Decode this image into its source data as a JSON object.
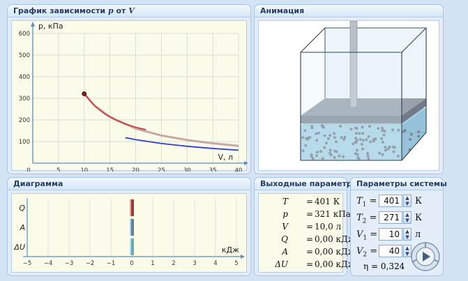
{
  "graph_panel": {
    "title_prefix": "График зависимости",
    "title_p": "p",
    "title_mid": "от",
    "title_v": "V"
  },
  "chart_data": {
    "type": "line",
    "xlabel": "V, л",
    "ylabel": "p, кПа",
    "xlim": [
      0,
      40
    ],
    "ylim": [
      0,
      600
    ],
    "x_ticks": [
      "0",
      "5",
      "10",
      "15",
      "20",
      "25",
      "30",
      "35",
      "40"
    ],
    "y_ticks": [
      "100",
      "200",
      "300",
      "400",
      "500",
      "600"
    ],
    "grid": true,
    "current_point": {
      "x": 10,
      "y": 321
    },
    "series": [
      {
        "color": "#c9a6a6",
        "x": [
          10,
          12,
          15,
          20,
          25,
          30,
          35,
          40
        ],
        "y": [
          321,
          267,
          214,
          160,
          128,
          107,
          92,
          80
        ]
      },
      {
        "color": "#c94040",
        "x": [
          10,
          12,
          14,
          16,
          18,
          20,
          22
        ],
        "y": [
          321,
          265,
          228,
          201,
          181,
          166,
          155
        ]
      },
      {
        "color": "#2a3fd6",
        "x": [
          18,
          20,
          25,
          30,
          35,
          40
        ],
        "y": [
          118,
          109,
          91,
          78,
          68,
          60
        ]
      }
    ]
  },
  "animation_panel": {
    "title": "Анимация"
  },
  "diagram_panel": {
    "title": "Диаграмма",
    "row_labels": [
      "Q",
      "A",
      "ΔU"
    ],
    "x_unit": "кДж",
    "x_ticks": [
      "−5",
      "−4",
      "−3",
      "−2",
      "−1",
      "0",
      "1",
      "2",
      "3",
      "4",
      "5"
    ],
    "values": {
      "Q": 0,
      "A": 0,
      "dU": 0
    }
  },
  "output_panel": {
    "title": "Выходные параметры",
    "rows": [
      {
        "label": "T",
        "value": "401 К"
      },
      {
        "label": "p",
        "value": "321 кПа"
      },
      {
        "label": "V",
        "value": "10,0 л"
      },
      {
        "label": "Q",
        "value": "0,00 кДж"
      },
      {
        "label": "A",
        "value": "0,00 кДж"
      },
      {
        "label": "ΔU",
        "value": "0,00 кДж"
      }
    ]
  },
  "system_panel": {
    "title": "Параметры системы",
    "params": [
      {
        "label": "T",
        "sub": "1",
        "value": "401",
        "unit": "К"
      },
      {
        "label": "T",
        "sub": "2",
        "value": "271",
        "unit": "К"
      },
      {
        "label": "V",
        "sub": "1",
        "value": "10",
        "unit": "л"
      },
      {
        "label": "V",
        "sub": "2",
        "value": "40",
        "unit": "л"
      }
    ],
    "eta_label": "η",
    "eta_value": "= 0,324"
  },
  "colors": {
    "panel_bg": "#e3eefa",
    "plot_bg": "#fbfbe9",
    "title_text": "#243e66"
  }
}
